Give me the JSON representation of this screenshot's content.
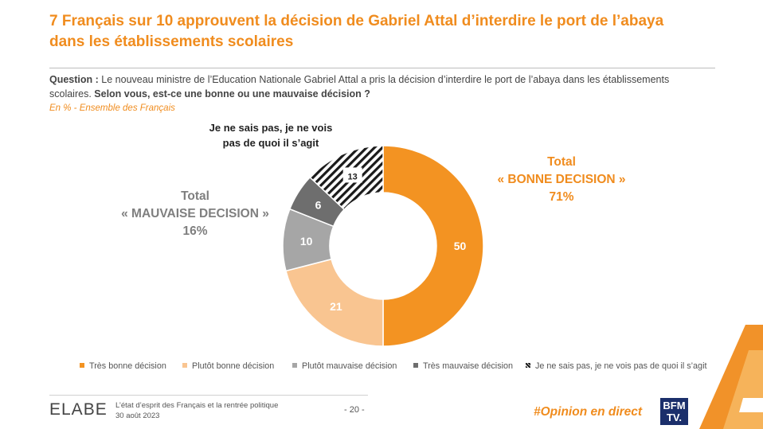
{
  "title": {
    "line1": "7 Français sur 10 approuvent la décision de Gabriel Attal d’interdire le port de l’abaya",
    "line2": "dans les établissements scolaires"
  },
  "question": {
    "label": "Question :",
    "text1": " Le nouveau ministre de l’Education Nationale Gabriel Attal a pris la décision d’interdire le port de l’abaya dans les établissements",
    "text2": "scolaires. ",
    "bold": "Selon vous, est-ce une bonne ou une mauvaise décision ?"
  },
  "subtitle": "En % - Ensemble des Français",
  "labels": {
    "dont_know_line1": "Je ne sais pas, je ne vois",
    "dont_know_line2": "pas de quoi il s’agit",
    "good_total_line1": "Total",
    "good_total_line2": "« BONNE DECISION »",
    "good_total_line3": "71%",
    "bad_total_line1": "Total",
    "bad_total_line2": "« MAUVAISE DECISION »",
    "bad_total_line3": "16%"
  },
  "chart_data": {
    "type": "pie",
    "donut": true,
    "labels": [
      "Très bonne décision",
      "Plutôt bonne décision",
      "Plutôt mauvaise décision",
      "Très mauvaise décision",
      "Je ne sais pas, je ne vois pas de quoi il s’agit"
    ],
    "values": [
      50,
      21,
      10,
      6,
      13
    ],
    "colors": [
      "#f39322",
      "#f9c591",
      "#a6a6a6",
      "#6e6e6e",
      "hatched"
    ],
    "unit": "%",
    "legend": "bottom"
  },
  "footer": {
    "brand": "ELABE",
    "text_line1": "L’état d’esprit des Français et la rentrée politique",
    "text_line2": "30 août 2023",
    "page": "- 20 -",
    "hashtag": "#Opinion en direct",
    "channel_line1": "BFM",
    "channel_line2": "TV."
  }
}
